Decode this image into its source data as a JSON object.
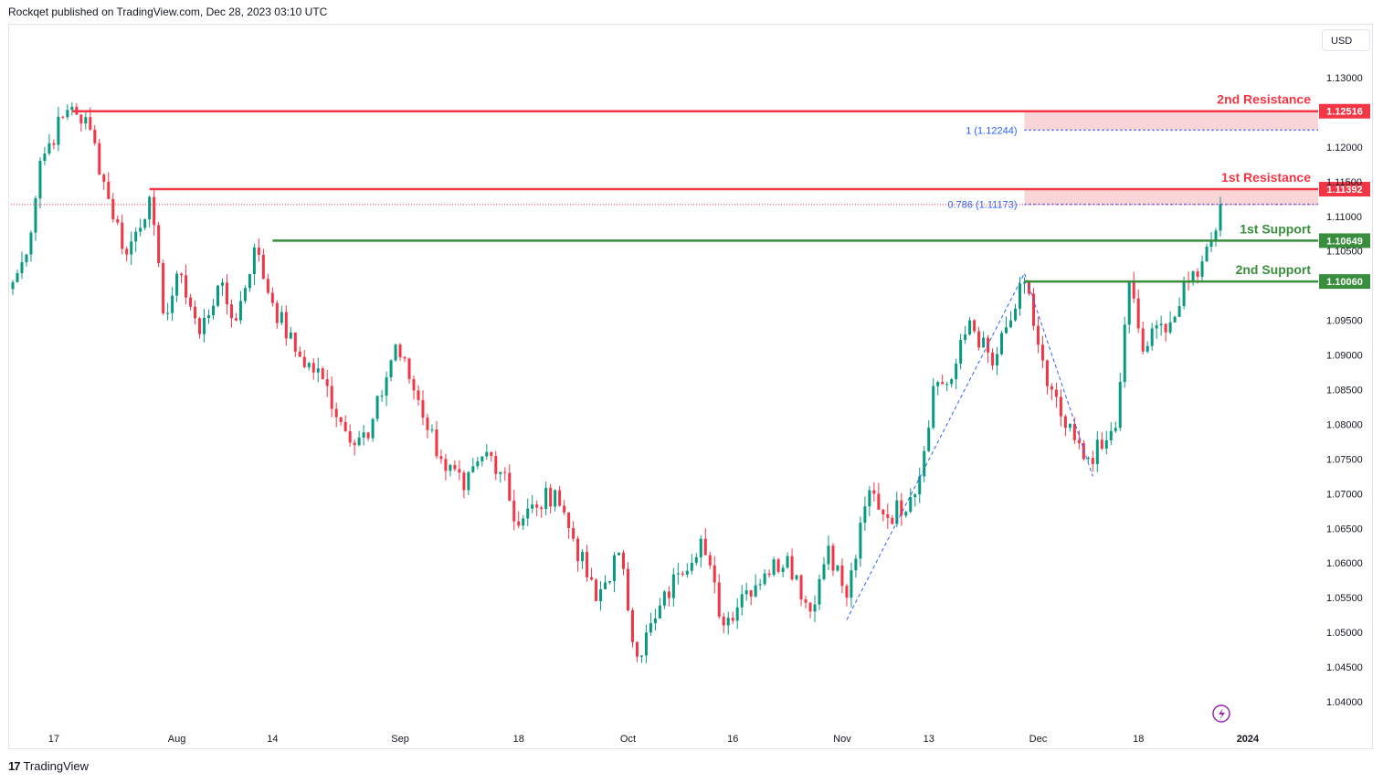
{
  "header": {
    "published_text": "Rockqet published on TradingView.com, Dec 28, 2023 03:10 UTC"
  },
  "footer": {
    "brand_mark": "17",
    "brand_name": "TradingView"
  },
  "toolbar": {
    "currency_label": "USD"
  },
  "colors": {
    "resistance": "#f23645",
    "support": "#388e3c",
    "fib": "#2962ff",
    "zone": "#f8d0d3",
    "candle_up": "#089981",
    "candle_down": "#f23645"
  },
  "icons": {
    "flash": "lightning-icon"
  },
  "chart_data": {
    "type": "candlestick",
    "title": "",
    "y_range": [
      1.0365,
      1.1325
    ],
    "y_ticks": [
      1.13,
      1.125,
      1.12,
      1.115,
      1.11,
      1.105,
      1.1,
      1.095,
      1.09,
      1.085,
      1.08,
      1.075,
      1.07,
      1.065,
      1.06,
      1.055,
      1.05,
      1.045,
      1.04
    ],
    "y_tick_labels": [
      "1.13000",
      "1.12500",
      "1.12000",
      "1.11500",
      "1.11000",
      "1.10500",
      "1.10000",
      "1.09500",
      "1.09000",
      "1.08500",
      "1.08000",
      "1.07500",
      "1.07000",
      "1.06500",
      "1.06000",
      "1.05500",
      "1.05000",
      "1.04500",
      "1.04000"
    ],
    "y_tick_labels_shown": [
      "1.13000",
      "1.12000",
      "1.11500",
      "1.11000",
      "1.10500",
      "1.09500",
      "1.09000",
      "1.08500",
      "1.08000",
      "1.07500",
      "1.07000",
      "1.06500",
      "1.06000",
      "1.05500",
      "1.05000",
      "1.04500",
      "1.04000"
    ],
    "x_tick_labels": [
      "17",
      "Aug",
      "14",
      "Sep",
      "18",
      "Oct",
      "16",
      "Nov",
      "13",
      "Dec",
      "18",
      "2024"
    ],
    "x_tick_index": [
      9,
      36,
      57,
      85,
      111,
      135,
      158,
      182,
      201,
      225,
      247,
      271
    ],
    "anchors": [
      {
        "i": 0,
        "p": 1.1005
      },
      {
        "i": 3,
        "p": 1.1045
      },
      {
        "i": 6,
        "p": 1.118
      },
      {
        "i": 11,
        "p": 1.1243
      },
      {
        "i": 13,
        "p": 1.1258
      },
      {
        "i": 17,
        "p": 1.1225
      },
      {
        "i": 21,
        "p": 1.1125
      },
      {
        "i": 25,
        "p": 1.1045
      },
      {
        "i": 30,
        "p": 1.1128
      },
      {
        "i": 33,
        "p": 1.096
      },
      {
        "i": 37,
        "p": 1.1015
      },
      {
        "i": 41,
        "p": 1.093
      },
      {
        "i": 45,
        "p": 1.1
      },
      {
        "i": 49,
        "p": 1.095
      },
      {
        "i": 53,
        "p": 1.1055
      },
      {
        "i": 57,
        "p": 1.0975
      },
      {
        "i": 62,
        "p": 1.0905
      },
      {
        "i": 68,
        "p": 1.0865
      },
      {
        "i": 73,
        "p": 1.079
      },
      {
        "i": 78,
        "p": 1.078
      },
      {
        "i": 84,
        "p": 1.0915
      },
      {
        "i": 89,
        "p": 1.0835
      },
      {
        "i": 94,
        "p": 1.075
      },
      {
        "i": 99,
        "p": 1.0705
      },
      {
        "i": 104,
        "p": 1.076
      },
      {
        "i": 108,
        "p": 1.073
      },
      {
        "i": 110,
        "p": 1.066
      },
      {
        "i": 115,
        "p": 1.068
      },
      {
        "i": 119,
        "p": 1.0705
      },
      {
        "i": 123,
        "p": 1.0635
      },
      {
        "i": 128,
        "p": 1.0545
      },
      {
        "i": 133,
        "p": 1.0615
      },
      {
        "i": 137,
        "p": 1.0465
      },
      {
        "i": 141,
        "p": 1.052
      },
      {
        "i": 146,
        "p": 1.0585
      },
      {
        "i": 151,
        "p": 1.0635
      },
      {
        "i": 156,
        "p": 1.051
      },
      {
        "i": 160,
        "p": 1.0555
      },
      {
        "i": 165,
        "p": 1.0585
      },
      {
        "i": 170,
        "p": 1.061
      },
      {
        "i": 175,
        "p": 1.053
      },
      {
        "i": 179,
        "p": 1.0625
      },
      {
        "i": 183,
        "p": 1.055
      },
      {
        "i": 188,
        "p": 1.0705
      },
      {
        "i": 192,
        "p": 1.0665
      },
      {
        "i": 197,
        "p": 1.0695
      },
      {
        "i": 199,
        "p": 1.0725
      },
      {
        "i": 202,
        "p": 1.0855
      },
      {
        "i": 206,
        "p": 1.0865
      },
      {
        "i": 210,
        "p": 1.095
      },
      {
        "i": 215,
        "p": 1.0885
      },
      {
        "i": 219,
        "p": 1.095
      },
      {
        "i": 222,
        "p": 1.1005
      },
      {
        "i": 227,
        "p": 1.0855
      },
      {
        "i": 231,
        "p": 1.0795
      },
      {
        "i": 235,
        "p": 1.075
      },
      {
        "i": 239,
        "p": 1.0765
      },
      {
        "i": 242,
        "p": 1.0795
      },
      {
        "i": 245,
        "p": 1.1005
      },
      {
        "i": 248,
        "p": 1.0905
      },
      {
        "i": 252,
        "p": 1.0945
      },
      {
        "i": 255,
        "p": 1.0955
      },
      {
        "i": 258,
        "p": 1.1005
      },
      {
        "i": 261,
        "p": 1.1035
      },
      {
        "i": 263,
        "p": 1.1065
      },
      {
        "i": 265,
        "p": 1.1117
      }
    ],
    "candle_count": 266,
    "levels": [
      {
        "name": "2nd Resistance",
        "label": "1.12516",
        "value": 1.12516,
        "kind": "resistance",
        "start_index": 13
      },
      {
        "name": "1st Resistance",
        "label": "1.11392",
        "value": 1.11392,
        "kind": "resistance",
        "start_index": 30
      },
      {
        "name": "1st Support",
        "label": "1.10649",
        "value": 1.10649,
        "kind": "support",
        "start_index": 57
      },
      {
        "name": "2nd Support",
        "label": "1.10060",
        "value": 1.1006,
        "kind": "support",
        "start_index": 222
      }
    ],
    "zones": [
      {
        "from": 1.12244,
        "to": 1.12516,
        "start_index": 222
      },
      {
        "from": 1.11173,
        "to": 1.11392,
        "start_index": 222
      }
    ],
    "fib_levels": [
      {
        "label": "1 (1.12244)",
        "value": 1.12244
      },
      {
        "label": "0.786 (1.11173)",
        "value": 1.11173
      }
    ],
    "fib_path": [
      {
        "i": 183,
        "p": 1.0518
      },
      {
        "i": 222,
        "p": 1.1018
      },
      {
        "i": 237,
        "p": 1.0725
      }
    ],
    "last_price": 1.1117,
    "grid": false,
    "legend": "none"
  }
}
